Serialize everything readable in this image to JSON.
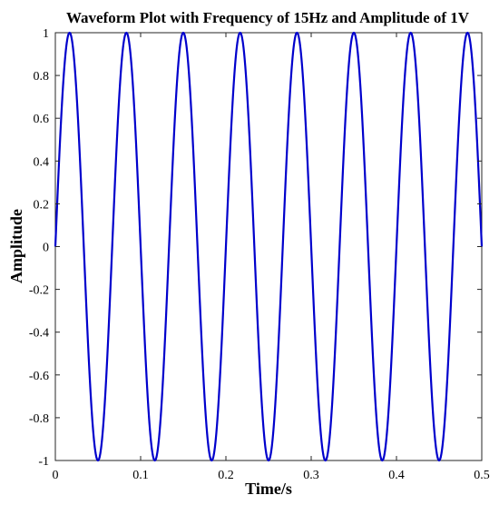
{
  "chart_data": {
    "type": "line",
    "title": "Waveform Plot with Frequency of 15Hz and Amplitude of 1V",
    "xlabel": "Time/s",
    "ylabel": "Amplitude",
    "xlim": [
      0,
      0.5
    ],
    "ylim": [
      -1,
      1
    ],
    "x_ticks": [
      0,
      0.1,
      0.2,
      0.3,
      0.4,
      0.5
    ],
    "x_tick_labels": [
      "0",
      "0.1",
      "0.2",
      "0.3",
      "0.4",
      "0.5"
    ],
    "y_ticks": [
      -1,
      -0.8,
      -0.6,
      -0.4,
      -0.2,
      0,
      0.2,
      0.4,
      0.6,
      0.8,
      1
    ],
    "y_tick_labels": [
      "-1",
      "-0.8",
      "-0.6",
      "-0.4",
      "-0.2",
      "0",
      "0.2",
      "0.4",
      "0.6",
      "0.8",
      "1"
    ],
    "grid": false,
    "series": [
      {
        "color": "#0000cc",
        "function": "sin",
        "frequency": 15,
        "amplitude": 1,
        "x_start": 0,
        "x_end": 0.5
      }
    ]
  }
}
